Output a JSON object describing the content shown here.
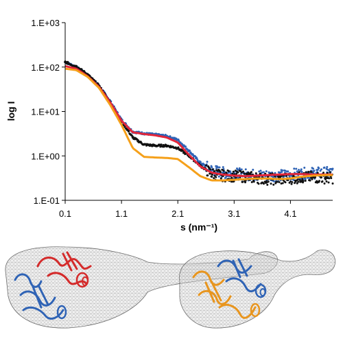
{
  "chart_data": {
    "type": "scatter",
    "xlabel": "s (nm⁻¹)",
    "ylabel": "log I",
    "xlim": [
      0.1,
      4.85
    ],
    "ylim_log10": [
      -1,
      3
    ],
    "y_scale": "log",
    "x_ticks": [
      "0.1",
      "1.1",
      "2.1",
      "3.1",
      "4.1"
    ],
    "y_ticks": [
      "1.E-01",
      "1.E+00",
      "1.E+01",
      "1.E+02",
      "1.E+03"
    ],
    "grid": false,
    "legend": "none",
    "series": [
      {
        "style": "dots",
        "color": "#2f63b5",
        "points": [
          [
            0.1,
            130
          ],
          [
            0.3,
            100
          ],
          [
            0.5,
            66
          ],
          [
            0.7,
            38
          ],
          [
            0.9,
            17
          ],
          [
            1.1,
            6.5
          ],
          [
            1.3,
            3.5
          ],
          [
            1.5,
            3.2
          ],
          [
            1.7,
            3.0
          ],
          [
            1.9,
            2.8
          ],
          [
            2.1,
            2.3
          ],
          [
            2.3,
            1.3
          ],
          [
            2.5,
            0.7
          ],
          [
            2.7,
            0.48
          ],
          [
            2.9,
            0.42
          ],
          [
            3.1,
            0.4
          ],
          [
            3.3,
            0.38
          ],
          [
            3.5,
            0.37
          ],
          [
            3.7,
            0.36
          ],
          [
            3.9,
            0.36
          ],
          [
            4.1,
            0.38
          ],
          [
            4.3,
            0.4
          ],
          [
            4.5,
            0.41
          ],
          [
            4.75,
            0.42
          ]
        ]
      },
      {
        "style": "dots",
        "color": "#111111",
        "points": [
          [
            0.1,
            130
          ],
          [
            0.3,
            103
          ],
          [
            0.5,
            68
          ],
          [
            0.7,
            38
          ],
          [
            0.9,
            16
          ],
          [
            1.1,
            6.0
          ],
          [
            1.3,
            2.6
          ],
          [
            1.5,
            1.8
          ],
          [
            1.7,
            1.7
          ],
          [
            1.9,
            1.7
          ],
          [
            2.1,
            1.5
          ],
          [
            2.3,
            1.0
          ],
          [
            2.5,
            0.6
          ],
          [
            2.7,
            0.4
          ],
          [
            2.9,
            0.36
          ],
          [
            3.1,
            0.35
          ],
          [
            3.3,
            0.34
          ],
          [
            3.5,
            0.32
          ],
          [
            3.7,
            0.3
          ],
          [
            3.9,
            0.3
          ],
          [
            4.1,
            0.31
          ],
          [
            4.3,
            0.33
          ],
          [
            4.5,
            0.33
          ],
          [
            4.75,
            0.32
          ]
        ]
      },
      {
        "style": "line",
        "color": "#e3263a",
        "points": [
          [
            0.1,
            105
          ],
          [
            0.3,
            92
          ],
          [
            0.5,
            62
          ],
          [
            0.7,
            36
          ],
          [
            0.9,
            16
          ],
          [
            1.1,
            6.2
          ],
          [
            1.3,
            3.4
          ],
          [
            1.5,
            3.1
          ],
          [
            1.7,
            2.9
          ],
          [
            1.9,
            2.6
          ],
          [
            2.1,
            2.0
          ],
          [
            2.3,
            1.05
          ],
          [
            2.5,
            0.58
          ],
          [
            2.7,
            0.42
          ],
          [
            2.9,
            0.38
          ],
          [
            3.1,
            0.36
          ],
          [
            3.3,
            0.35
          ],
          [
            3.5,
            0.36
          ],
          [
            3.7,
            0.37
          ],
          [
            3.9,
            0.38
          ],
          [
            4.1,
            0.39
          ],
          [
            4.3,
            0.39
          ],
          [
            4.5,
            0.38
          ],
          [
            4.75,
            0.38
          ]
        ]
      },
      {
        "style": "line",
        "color": "#f5a01a",
        "points": [
          [
            0.1,
            92
          ],
          [
            0.3,
            85
          ],
          [
            0.5,
            60
          ],
          [
            0.7,
            34
          ],
          [
            0.9,
            14
          ],
          [
            1.1,
            5.0
          ],
          [
            1.3,
            1.5
          ],
          [
            1.5,
            0.95
          ],
          [
            1.7,
            0.92
          ],
          [
            1.9,
            0.9
          ],
          [
            2.1,
            0.85
          ],
          [
            2.3,
            0.55
          ],
          [
            2.5,
            0.35
          ],
          [
            2.7,
            0.28
          ],
          [
            2.9,
            0.28
          ],
          [
            3.1,
            0.29
          ],
          [
            3.3,
            0.3
          ],
          [
            3.5,
            0.31
          ],
          [
            3.7,
            0.31
          ],
          [
            3.9,
            0.3
          ],
          [
            4.1,
            0.31
          ],
          [
            4.3,
            0.34
          ],
          [
            4.5,
            0.36
          ],
          [
            4.75,
            0.37
          ]
        ]
      }
    ]
  },
  "colors": {
    "axis": "#000000",
    "envelope_fill": "#d8d8d8",
    "envelope_mesh": "#8a8a8a",
    "structure_blue": "#2f63b5",
    "structure_red": "#d42b2b",
    "structure_orange": "#e8951e"
  },
  "images": [
    {
      "icon": "protein-model-blue-red-in-envelope"
    },
    {
      "icon": "protein-model-blue-orange-in-envelope"
    }
  ]
}
